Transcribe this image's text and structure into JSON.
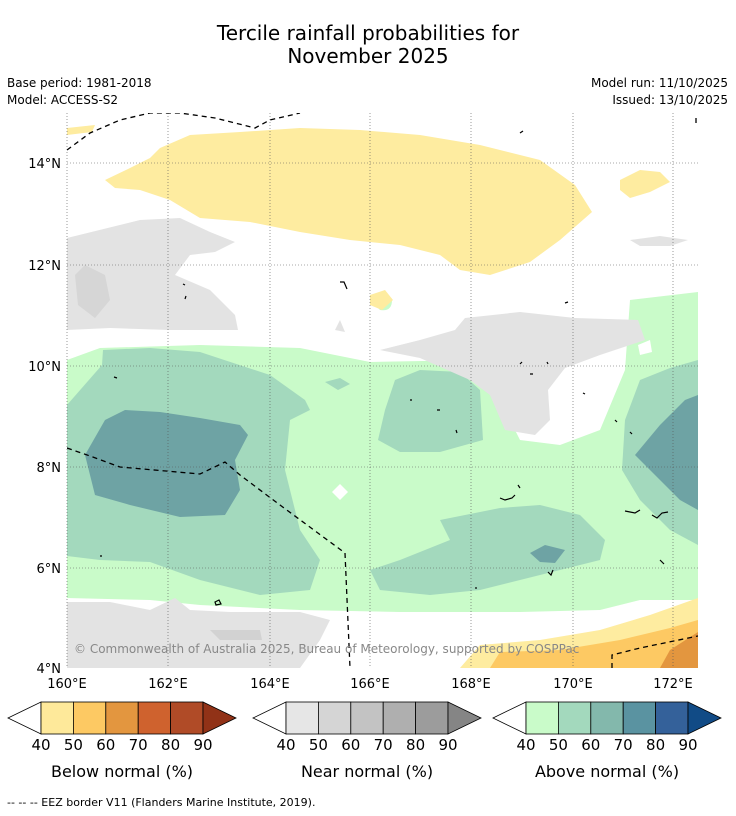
{
  "title": {
    "line1": "Tercile rainfall probabilities for",
    "line2": "November 2025"
  },
  "meta": {
    "base_period": "Base period: 1981-2018",
    "model": "Model: ACCESS-S2",
    "model_run": "Model run: 11/10/2025",
    "issued": "Issued: 13/10/2025"
  },
  "map": {
    "lat_labels": [
      "14°N",
      "12°N",
      "10°N",
      "8°N",
      "6°N",
      "4°N"
    ],
    "lon_labels": [
      "160°E",
      "162°E",
      "164°E",
      "166°E",
      "168°E",
      "170°E",
      "172°E"
    ],
    "copyright": "© Commonwealth of Australia 2025, Bureau of Meteorology, supported by COSPPac"
  },
  "colorbars": [
    {
      "label": "Below normal (%)",
      "ticks": [
        "40",
        "50",
        "60",
        "70",
        "80",
        "90"
      ],
      "colors": [
        "#fee99a",
        "#fdc963",
        "#e3963f",
        "#cf622e",
        "#b04b27",
        "#913217"
      ]
    },
    {
      "label": "Near normal (%)",
      "ticks": [
        "40",
        "50",
        "60",
        "70",
        "80",
        "90"
      ],
      "colors": [
        "#e6e6e6",
        "#d5d5d5",
        "#c3c3c3",
        "#afafaf",
        "#9c9c9c",
        "#858585"
      ]
    },
    {
      "label": "Above normal (%)",
      "ticks": [
        "40",
        "50",
        "60",
        "70",
        "80",
        "90"
      ],
      "colors": [
        "#c9fbc9",
        "#a3d9bd",
        "#83b8ac",
        "#5a93a1",
        "#34619a",
        "#114b86"
      ]
    }
  ],
  "footer": "--  --  -- EEZ border V11 (Flanders Marine Institute, 2019)."
}
